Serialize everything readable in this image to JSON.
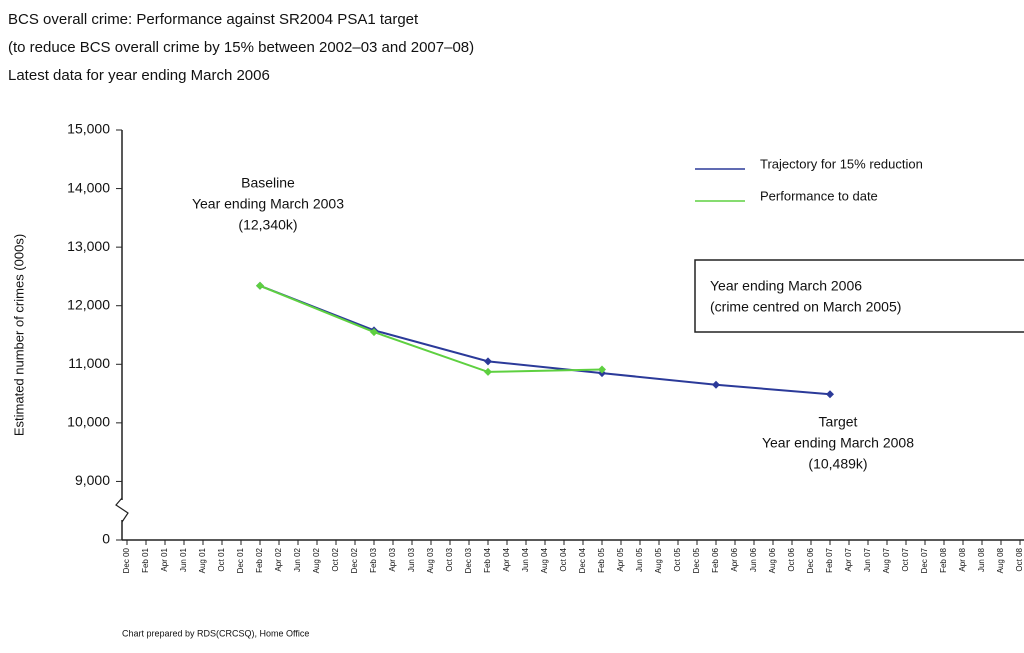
{
  "chart_data": {
    "type": "line",
    "title": "BCS overall crime: Performance against SR2004 PSA1 target",
    "subtitle": [
      "(to reduce BCS overall crime by 15% between 2002–03 and 2007–08)",
      "Latest data for year ending March 2006"
    ],
    "y_label": "Estimated number of crimes (000s)",
    "ylim": [
      0,
      15000
    ],
    "yticks": [
      {
        "value": 0,
        "label": "0"
      },
      {
        "value": 9000,
        "label": "9,000"
      },
      {
        "value": 10000,
        "label": "10,000"
      },
      {
        "value": 11000,
        "label": "11,000"
      },
      {
        "value": 12000,
        "label": "12,000"
      },
      {
        "value": 13000,
        "label": "13,000"
      },
      {
        "value": 14000,
        "label": "14,000"
      },
      {
        "value": 15000,
        "label": "15,000"
      }
    ],
    "axis_break": true,
    "categories": [
      "Dec 00",
      "Feb 01",
      "Apr 01",
      "Jun 01",
      "Aug 01",
      "Oct 01",
      "Dec 01",
      "Feb 02",
      "Apr 02",
      "Jun 02",
      "Aug 02",
      "Oct 02",
      "Dec 02",
      "Feb 03",
      "Apr 03",
      "Jun 03",
      "Aug 03",
      "Oct 03",
      "Dec 03",
      "Feb 04",
      "Apr 04",
      "Jun 04",
      "Aug 04",
      "Oct 04",
      "Dec 04",
      "Feb 05",
      "Apr 05",
      "Jun 05",
      "Aug 05",
      "Oct 05",
      "Dec 05",
      "Feb 06",
      "Apr 06",
      "Jun 06",
      "Aug 06",
      "Oct 06",
      "Dec 06",
      "Feb 07",
      "Apr 07",
      "Jun 07",
      "Aug 07",
      "Oct 07",
      "Dec 07",
      "Feb 08",
      "Apr 08",
      "Jun 08",
      "Aug 08",
      "Oct 08"
    ],
    "series": [
      {
        "name": "Trajectory for 15% reduction",
        "color": "#2b3a99",
        "x": [
          "Feb 02",
          "Feb 03",
          "Feb 04",
          "Feb 05",
          "Feb 06",
          "Feb 07"
        ],
        "values": [
          12340,
          11580,
          11050,
          10850,
          10650,
          10489
        ]
      },
      {
        "name": "Performance to date",
        "color": "#5ed040",
        "x": [
          "Feb 02",
          "Feb 03",
          "Feb 04",
          "Feb 05"
        ],
        "values": [
          12340,
          11550,
          10870,
          10910
        ]
      }
    ],
    "annotations": [
      [
        "Baseline",
        "Year ending March 2003",
        "(12,340k)"
      ],
      [
        "Target",
        "Year ending March 2008",
        "(10,489k)"
      ],
      [
        "Year ending March 2006",
        "(crime centred on March 2005)"
      ]
    ],
    "footnote": "Chart prepared by RDS(CRCSQ), Home Office"
  }
}
